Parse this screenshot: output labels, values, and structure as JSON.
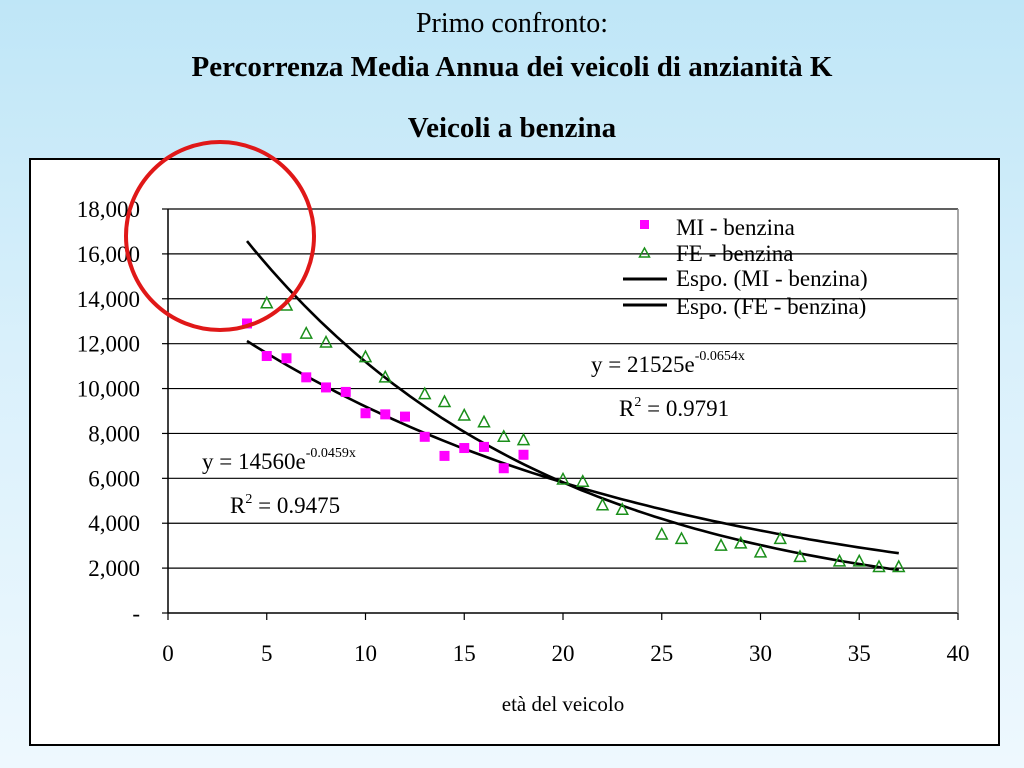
{
  "header": {
    "line1": "Primo confronto:",
    "line2": "Percorrenza Media Annua dei veicoli di anzianità K",
    "line3": "Veicoli a benzina"
  },
  "colors": {
    "mi_marker": "#ff00ff",
    "fe_marker": "#1a8f1a",
    "trend": "#000000",
    "highlight": "#e01818"
  },
  "chart_data": {
    "type": "scatter",
    "title": "",
    "xlabel": "età del veicolo",
    "ylabel": "",
    "xlim": [
      0,
      40
    ],
    "ylim": [
      0,
      18000
    ],
    "x_ticks": [
      "0",
      "5",
      "10",
      "15",
      "20",
      "25",
      "30",
      "35",
      "40"
    ],
    "x_tick_values": [
      0,
      5,
      10,
      15,
      20,
      25,
      30,
      35,
      40
    ],
    "y_ticks": [
      "-",
      "2,000",
      "4,000",
      "6,000",
      "8,000",
      "10,000",
      "12,000",
      "14,000",
      "16,000",
      "18,000"
    ],
    "y_tick_values": [
      0,
      2000,
      4000,
      6000,
      8000,
      10000,
      12000,
      14000,
      16000,
      18000
    ],
    "grid": "horizontal",
    "legend_position": "top-right",
    "series": [
      {
        "name": "MI - benzina",
        "marker": "square",
        "x": [
          4,
          5,
          6,
          7,
          8,
          9,
          10,
          11,
          12,
          13,
          14,
          15,
          16,
          17,
          18
        ],
        "y": [
          12900,
          11450,
          11350,
          10500,
          10050,
          9850,
          8900,
          8850,
          8750,
          7850,
          7000,
          7350,
          7400,
          6450,
          7050
        ]
      },
      {
        "name": "FE - benzina",
        "marker": "triangle",
        "x": [
          5,
          6,
          7,
          8,
          10,
          11,
          13,
          14,
          15,
          16,
          17,
          18,
          20,
          21,
          22,
          23,
          25,
          26,
          28,
          29,
          30,
          31,
          32,
          34,
          35,
          36,
          37
        ],
        "y": [
          13800,
          13700,
          12450,
          12050,
          11400,
          10500,
          9750,
          9400,
          8800,
          8500,
          7850,
          7700,
          5950,
          5850,
          4800,
          4600,
          3500,
          3300,
          3000,
          3100,
          2700,
          3300,
          2500,
          2300,
          2300,
          2050,
          2050
        ]
      },
      {
        "name": "Espo. (MI - benzina)",
        "type": "trendline",
        "coef": 14560,
        "rate": -0.0459,
        "x_range": [
          4,
          37
        ]
      },
      {
        "name": "Espo. (FE - benzina)",
        "type": "trendline",
        "coef": 21525,
        "rate": -0.0654,
        "x_range": [
          4,
          37
        ]
      }
    ],
    "annotations": {
      "fe_equation_base": "y = 21525e",
      "fe_equation_exp": "-0.0654x",
      "fe_r2_base": "R",
      "fe_r2_sup": "2",
      "fe_r2_value": " = 0.9791",
      "mi_equation_base": "y = 14560e",
      "mi_equation_exp": "-0.0459x",
      "mi_r2_base": "R",
      "mi_r2_sup": "2",
      "mi_r2_value": " = 0.9475"
    }
  }
}
